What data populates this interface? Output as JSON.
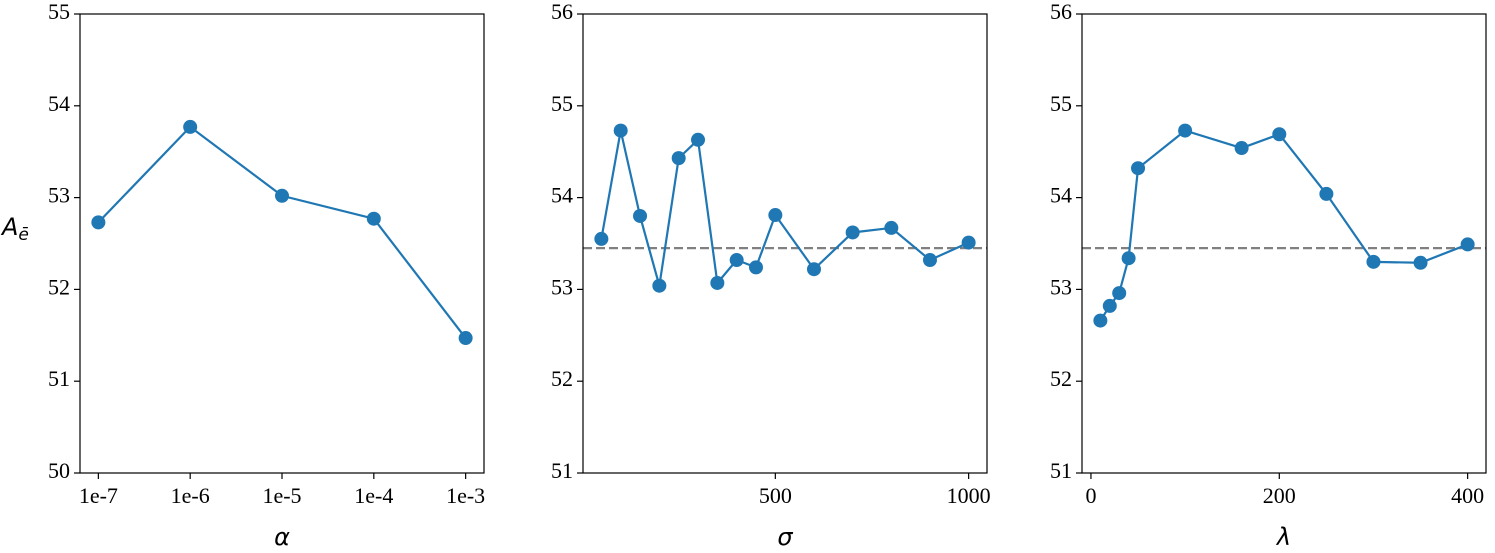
{
  "chart_data": [
    {
      "type": "line",
      "categories": [
        "1e-7",
        "1e-6",
        "1e-5",
        "1e-4",
        "1e-3"
      ],
      "series": [
        {
          "color": "#1f77b4",
          "values": [
            52.73,
            53.77,
            53.02,
            52.77,
            51.47
          ]
        }
      ],
      "ylim": [
        50,
        55
      ],
      "yticks": [
        50,
        51,
        52,
        53,
        54,
        55
      ],
      "xlabel": "α",
      "ylabel": [
        "A",
        "ē"
      ]
    },
    {
      "type": "line",
      "x": [
        50,
        100,
        150,
        200,
        250,
        300,
        350,
        400,
        450,
        500,
        600,
        700,
        800,
        900,
        1000
      ],
      "series": [
        {
          "color": "#1f77b4",
          "values": [
            53.55,
            54.73,
            53.8,
            53.04,
            54.43,
            54.63,
            53.07,
            53.32,
            53.24,
            53.81,
            53.22,
            53.62,
            53.67,
            53.32,
            53.51
          ]
        }
      ],
      "xlim": [
        2.5,
        1047.5
      ],
      "xticks": [
        500,
        1000
      ],
      "ylim": [
        51,
        56
      ],
      "yticks": [
        51,
        52,
        53,
        54,
        55,
        56
      ],
      "hline": {
        "value": 53.45,
        "color": "#808080",
        "style": "dashed"
      },
      "xlabel": "σ"
    },
    {
      "type": "line",
      "x": [
        10,
        20,
        30,
        40,
        50,
        100,
        160,
        200,
        250,
        300,
        350,
        400
      ],
      "series": [
        {
          "color": "#1f77b4",
          "values": [
            52.66,
            52.82,
            52.96,
            53.34,
            54.32,
            54.73,
            54.54,
            54.69,
            54.04,
            53.3,
            53.29,
            53.49
          ]
        }
      ],
      "xlim": [
        -9.5,
        419.5
      ],
      "xticks": [
        0,
        200,
        400
      ],
      "ylim": [
        51,
        56
      ],
      "yticks": [
        51,
        52,
        53,
        54,
        55,
        56
      ],
      "hline": {
        "value": 53.45,
        "color": "#808080",
        "style": "dashed"
      },
      "xlabel": "λ"
    }
  ]
}
